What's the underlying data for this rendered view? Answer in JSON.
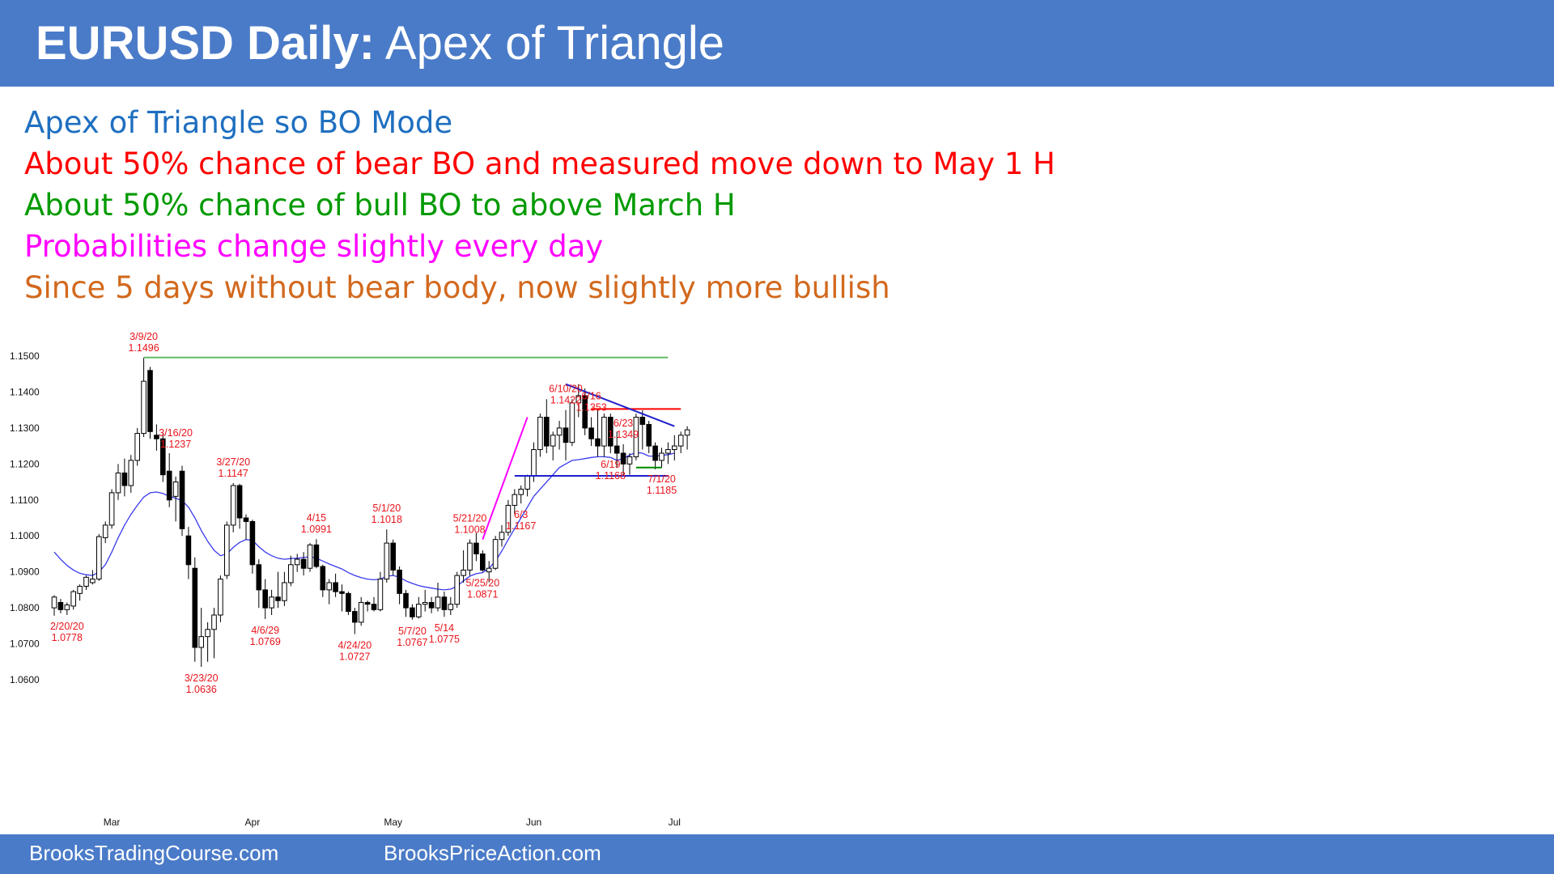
{
  "header": {
    "title_bold": "EURUSD Daily:",
    "title_rest": "Apex of Triangle",
    "bg_color": "#4a7bc8"
  },
  "bullets": [
    {
      "text": "Apex of Triangle so BO Mode",
      "color": "#1f6fc0"
    },
    {
      "text": "About 50% chance of bear BO and measured move down to May 1 H",
      "color": "#ff0000"
    },
    {
      "text": "About 50% chance of bull BO to above March H",
      "color": "#009a00"
    },
    {
      "text": "Probabilities change slightly every day",
      "color": "#ff00ff"
    },
    {
      "text": "Since 5 days without bear body, now slightly more bullish",
      "color": "#d2691e"
    }
  ],
  "chart_data": {
    "type": "candlestick",
    "ylim": [
      1.056,
      1.156
    ],
    "yticks": [
      "1.1500",
      "1.1400",
      "1.1300",
      "1.1200",
      "1.1100",
      "1.1000",
      "1.0900",
      "1.0800",
      "1.0700",
      "1.0600"
    ],
    "xticks": [
      {
        "label": "Mar",
        "index": 9
      },
      {
        "label": "Apr",
        "index": 31
      },
      {
        "label": "May",
        "index": 53
      },
      {
        "label": "Jun",
        "index": 75
      },
      {
        "label": "Jul",
        "index": 97
      }
    ],
    "ohlc": [
      [
        1.08,
        1.0835,
        1.0778,
        1.083
      ],
      [
        1.0815,
        1.0825,
        1.0785,
        1.0795
      ],
      [
        1.0795,
        1.0815,
        1.078,
        1.0808
      ],
      [
        1.0805,
        1.085,
        1.0795,
        1.0845
      ],
      [
        1.084,
        1.0865,
        1.082,
        1.086
      ],
      [
        1.086,
        1.089,
        1.085,
        1.0885
      ],
      [
        1.087,
        1.0905,
        1.0865,
        1.088
      ],
      [
        1.088,
        1.1005,
        1.0875,
        1.0998
      ],
      [
        1.0995,
        1.104,
        1.098,
        1.103
      ],
      [
        1.103,
        1.113,
        1.102,
        1.112
      ],
      [
        1.112,
        1.12,
        1.11,
        1.1175
      ],
      [
        1.1175,
        1.1215,
        1.111,
        1.114
      ],
      [
        1.114,
        1.1225,
        1.112,
        1.121
      ],
      [
        1.121,
        1.13,
        1.1195,
        1.1285
      ],
      [
        1.1285,
        1.1496,
        1.1275,
        1.143
      ],
      [
        1.146,
        1.147,
        1.127,
        1.129
      ],
      [
        1.128,
        1.131,
        1.1237,
        1.127
      ],
      [
        1.127,
        1.1285,
        1.115,
        1.117
      ],
      [
        1.118,
        1.123,
        1.108,
        1.11
      ],
      [
        1.111,
        1.1165,
        1.104,
        1.115
      ],
      [
        1.118,
        1.1195,
        1.1,
        1.102
      ],
      [
        1.1,
        1.1025,
        1.088,
        1.092
      ],
      [
        1.091,
        1.094,
        1.065,
        1.069
      ],
      [
        1.069,
        1.08,
        1.0636,
        1.072
      ],
      [
        1.072,
        1.076,
        1.065,
        1.074
      ],
      [
        1.074,
        1.08,
        1.066,
        1.078
      ],
      [
        1.078,
        1.089,
        1.076,
        1.088
      ],
      [
        1.089,
        1.104,
        1.088,
        1.103
      ],
      [
        1.103,
        1.1147,
        1.101,
        1.114
      ],
      [
        1.114,
        1.1145,
        1.102,
        1.105
      ],
      [
        1.105,
        1.106,
        1.099,
        1.104
      ],
      [
        1.104,
        1.1045,
        1.0895,
        1.092
      ],
      [
        1.092,
        1.0935,
        1.08,
        1.085
      ],
      [
        1.085,
        1.088,
        1.0769,
        1.08
      ],
      [
        1.08,
        1.085,
        1.078,
        1.083
      ],
      [
        1.083,
        1.09,
        1.08,
        1.082
      ],
      [
        1.082,
        1.09,
        1.0805,
        1.087
      ],
      [
        1.087,
        1.0945,
        1.086,
        1.092
      ],
      [
        1.092,
        1.095,
        1.09,
        1.0935
      ],
      [
        1.0935,
        1.0955,
        1.089,
        1.091
      ],
      [
        1.091,
        1.098,
        1.09,
        1.0975
      ],
      [
        1.0975,
        1.0991,
        1.091,
        1.0915
      ],
      [
        1.0915,
        1.092,
        1.083,
        1.085
      ],
      [
        1.085,
        1.088,
        1.081,
        1.087
      ],
      [
        1.087,
        1.0895,
        1.083,
        1.0845
      ],
      [
        1.0845,
        1.0865,
        1.079,
        1.084
      ],
      [
        1.084,
        1.0845,
        1.078,
        1.079
      ],
      [
        1.079,
        1.08,
        1.0727,
        1.076
      ],
      [
        1.076,
        1.083,
        1.075,
        1.0815
      ],
      [
        1.0815,
        1.082,
        1.079,
        1.081
      ],
      [
        1.081,
        1.083,
        1.079,
        1.0795
      ],
      [
        1.0795,
        1.09,
        1.079,
        1.088
      ],
      [
        1.088,
        1.1018,
        1.087,
        1.098
      ],
      [
        1.098,
        1.099,
        1.089,
        1.0905
      ],
      [
        1.0905,
        1.0915,
        1.081,
        1.084
      ],
      [
        1.084,
        1.085,
        1.0775,
        1.08
      ],
      [
        1.08,
        1.081,
        1.0767,
        1.0775
      ],
      [
        1.0775,
        1.083,
        1.077,
        1.081
      ],
      [
        1.081,
        1.085,
        1.079,
        1.0815
      ],
      [
        1.0815,
        1.083,
        1.0785,
        1.08
      ],
      [
        1.08,
        1.087,
        1.079,
        1.083
      ],
      [
        1.083,
        1.0845,
        1.0775,
        1.0795
      ],
      [
        1.0795,
        1.083,
        1.078,
        1.081
      ],
      [
        1.081,
        1.09,
        1.08,
        1.089
      ],
      [
        1.089,
        1.096,
        1.087,
        1.0905
      ],
      [
        1.0905,
        1.099,
        1.089,
        1.098
      ],
      [
        1.098,
        1.1008,
        1.093,
        1.095
      ],
      [
        1.095,
        1.096,
        1.09,
        1.0905
      ],
      [
        1.09,
        1.093,
        1.0871,
        1.091
      ],
      [
        1.091,
        1.1,
        1.0905,
        1.099
      ],
      [
        1.099,
        1.103,
        1.097,
        1.101
      ],
      [
        1.101,
        1.11,
        1.1,
        1.1085
      ],
      [
        1.1085,
        1.113,
        1.106,
        1.1115
      ],
      [
        1.1115,
        1.114,
        1.109,
        1.113
      ],
      [
        1.113,
        1.117,
        1.111,
        1.1167
      ],
      [
        1.1167,
        1.126,
        1.115,
        1.124
      ],
      [
        1.124,
        1.134,
        1.122,
        1.133
      ],
      [
        1.133,
        1.138,
        1.123,
        1.125
      ],
      [
        1.125,
        1.129,
        1.121,
        1.128
      ],
      [
        1.128,
        1.132,
        1.124,
        1.13
      ],
      [
        1.13,
        1.135,
        1.121,
        1.126
      ],
      [
        1.126,
        1.138,
        1.125,
        1.137
      ],
      [
        1.137,
        1.1422,
        1.133,
        1.139
      ],
      [
        1.139,
        1.141,
        1.128,
        1.13
      ],
      [
        1.13,
        1.133,
        1.125,
        1.127
      ],
      [
        1.127,
        1.1353,
        1.122,
        1.125
      ],
      [
        1.125,
        1.134,
        1.122,
        1.133
      ],
      [
        1.133,
        1.134,
        1.123,
        1.125
      ],
      [
        1.125,
        1.129,
        1.119,
        1.123
      ],
      [
        1.123,
        1.1255,
        1.1168,
        1.12
      ],
      [
        1.12,
        1.123,
        1.117,
        1.122
      ],
      [
        1.122,
        1.134,
        1.121,
        1.133
      ],
      [
        1.133,
        1.1349,
        1.124,
        1.131
      ],
      [
        1.131,
        1.132,
        1.123,
        1.125
      ],
      [
        1.125,
        1.126,
        1.1185,
        1.121
      ],
      [
        1.121,
        1.1245,
        1.119,
        1.123
      ],
      [
        1.123,
        1.126,
        1.12,
        1.124
      ],
      [
        1.124,
        1.128,
        1.121,
        1.125
      ],
      [
        1.125,
        1.129,
        1.123,
        1.128
      ],
      [
        1.128,
        1.1305,
        1.124,
        1.1295
      ]
    ],
    "ema_index_start": 0,
    "ema": [
      1.0955,
      1.0935,
      1.0918,
      1.0905,
      1.0896,
      1.0892,
      1.089,
      1.09,
      1.092,
      1.0955,
      1.0995,
      1.103,
      1.106,
      1.1085,
      1.1108,
      1.112,
      1.1122,
      1.1118,
      1.111,
      1.1105,
      1.1098,
      1.108,
      1.105,
      1.1015,
      1.0985,
      1.096,
      1.0945,
      1.095,
      1.0968,
      1.0982,
      1.099,
      1.0988,
      1.097,
      1.0955,
      1.0945,
      1.0938,
      1.0935,
      1.0937,
      1.0938,
      1.094,
      1.0942,
      1.0938,
      1.093,
      1.0922,
      1.0915,
      1.0908,
      1.0898,
      1.089,
      1.0884,
      1.088,
      1.0878,
      1.088,
      1.0888,
      1.089,
      1.0885,
      1.0875,
      1.0868,
      1.0862,
      1.0858,
      1.0855,
      1.0852,
      1.085,
      1.0852,
      1.086,
      1.0875,
      1.0888,
      1.0895,
      1.0898,
      1.091,
      1.093,
      1.0958,
      1.099,
      1.102,
      1.105,
      1.108,
      1.111,
      1.113,
      1.115,
      1.117,
      1.119,
      1.12,
      1.121,
      1.1212,
      1.1215,
      1.1218,
      1.122,
      1.122,
      1.1218,
      1.121,
      1.1215,
      1.1225,
      1.1232,
      1.123,
      1.1222,
      1.1222,
      1.1224,
      1.1226,
      1.123
    ],
    "annotations": [
      {
        "date": "3/9/20",
        "price": "1.1496",
        "index": 14,
        "pos": "above"
      },
      {
        "date": "3/16/20",
        "price": "1.1237",
        "index": 19,
        "pos": "label-1237"
      },
      {
        "date": "3/27/20",
        "price": "1.1147",
        "index": 28,
        "pos": "above"
      },
      {
        "date": "4/15",
        "price": "1.0991",
        "index": 41,
        "pos": "above"
      },
      {
        "date": "5/1/20",
        "price": "1.1018",
        "index": 52,
        "pos": "above"
      },
      {
        "date": "5/21/20",
        "price": "1.1008",
        "index": 65,
        "pos": "above"
      },
      {
        "date": "6/10/20",
        "price": "1.1422",
        "index": 80,
        "pos": "above"
      },
      {
        "date": "6/16",
        "price": "1.1353",
        "index": 84,
        "pos": "above"
      },
      {
        "date": "6/23",
        "price": "1.1349",
        "index": 89,
        "pos": "above"
      },
      {
        "date": "2/20/20",
        "price": "1.0778",
        "index": 2,
        "pos": "below"
      },
      {
        "date": "3/23/20",
        "price": "1.0636",
        "index": 23,
        "pos": "below"
      },
      {
        "date": "4/6/29",
        "price": "1.0769",
        "index": 33,
        "pos": "below"
      },
      {
        "date": "4/24/20",
        "price": "1.0727",
        "index": 47,
        "pos": "below"
      },
      {
        "date": "5/7/20",
        "price": "1.0767",
        "index": 56,
        "pos": "below"
      },
      {
        "date": "5/14",
        "price": "1.0775",
        "index": 61,
        "pos": "below"
      },
      {
        "date": "5/25/20",
        "price": "1.0871",
        "index": 67,
        "pos": "below"
      },
      {
        "date": "6/3",
        "price": "1.1167",
        "index": 73,
        "pos": "below"
      },
      {
        "date": "6/19",
        "price": "1.1168",
        "index": 87,
        "pos": "below"
      },
      {
        "date": "7/1/20",
        "price": "1.1185",
        "index": 95,
        "pos": "below"
      }
    ],
    "lines": [
      {
        "name": "march-high-line",
        "color": "#66bb66",
        "from": [
          14,
          1.1496
        ],
        "to": [
          96,
          1.1496
        ]
      },
      {
        "name": "resistance-red-line",
        "color": "#ff0000",
        "from": [
          84,
          1.1353
        ],
        "to": [
          98,
          1.1353
        ]
      },
      {
        "name": "triangle-upper-line",
        "color": "#1f1fcc",
        "from": [
          80,
          1.1422
        ],
        "to": [
          97,
          1.1305
        ]
      },
      {
        "name": "triangle-lower-line",
        "color": "#1f1fcc",
        "from": [
          72,
          1.1167
        ],
        "to": [
          96,
          1.1167
        ]
      },
      {
        "name": "support-green-line",
        "color": "#008800",
        "from": [
          91,
          1.119
        ],
        "to": [
          95,
          1.119
        ]
      },
      {
        "name": "spike-magenta-line",
        "color": "#ff00ff",
        "from": [
          67,
          1.099
        ],
        "to": [
          74,
          1.133
        ]
      }
    ]
  },
  "footer": {
    "left": "BrooksTradingCourse.com",
    "right": "BrooksPriceAction.com"
  }
}
